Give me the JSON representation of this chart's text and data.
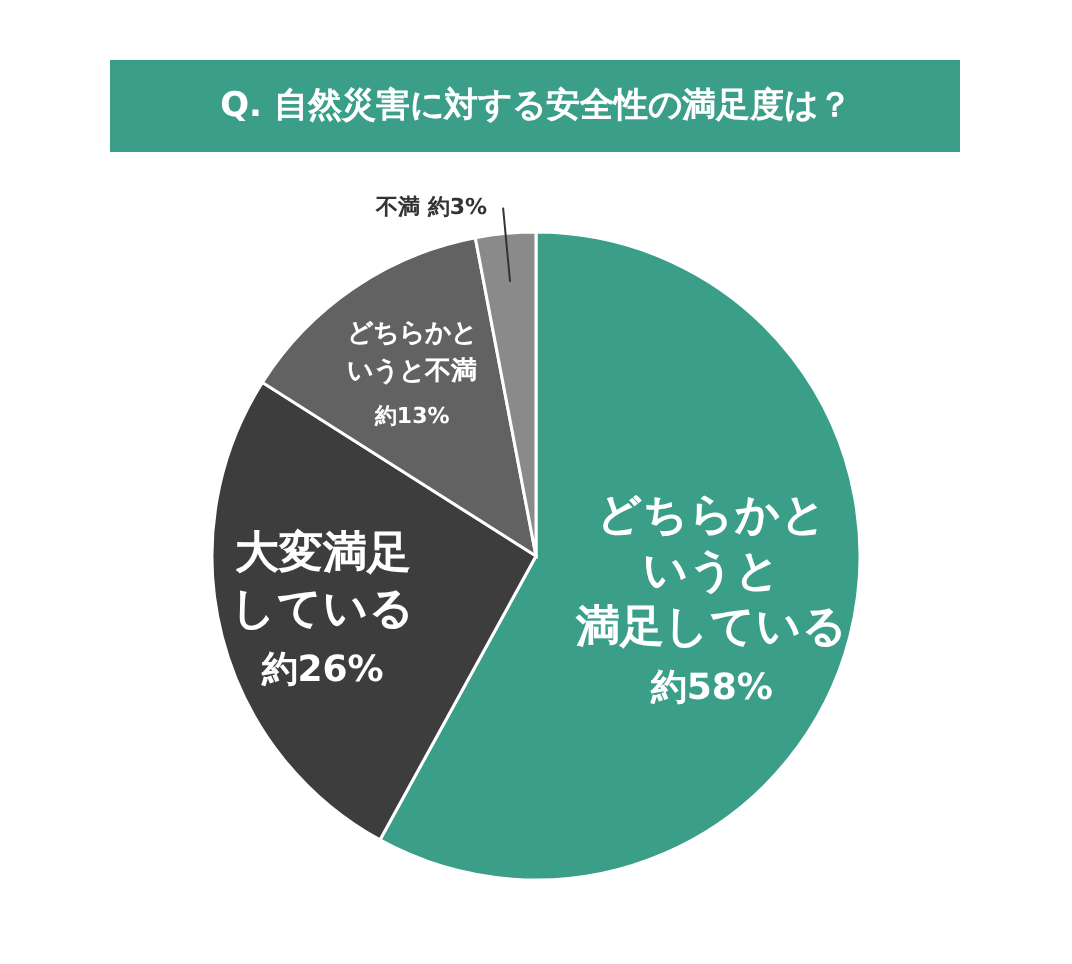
{
  "chart_data": {
    "type": "pie",
    "title": "Q. 自然災害に対する安全性の満足度は？",
    "categories": [
      "どちらかというと満足している",
      "大変満足している",
      "どちらかというと不満",
      "不満"
    ],
    "values": [
      58,
      26,
      13,
      3
    ],
    "colors": [
      "#3a9e89",
      "#3d3d3d",
      "#626262",
      "#8a8a8a"
    ],
    "value_labels": [
      "約58%",
      "約26%",
      "約13%",
      "約3%"
    ]
  }
}
